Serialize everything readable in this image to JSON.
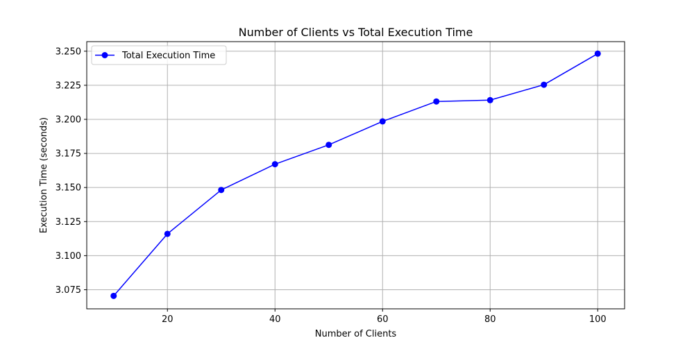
{
  "chart_data": {
    "type": "line",
    "title": "Number of Clients vs Total Execution Time",
    "xlabel": "Number of Clients",
    "ylabel": "Execution Time (seconds)",
    "xlim": [
      5,
      105
    ],
    "ylim": [
      3.061,
      3.257
    ],
    "x": [
      10,
      20,
      30,
      40,
      50,
      60,
      70,
      80,
      90,
      100
    ],
    "xticks": [
      20,
      40,
      60,
      80,
      100
    ],
    "xtick_labels": [
      "20",
      "40",
      "60",
      "80",
      "100"
    ],
    "yticks": [
      3.075,
      3.1,
      3.125,
      3.15,
      3.175,
      3.2,
      3.225,
      3.25
    ],
    "ytick_labels": [
      "3.075",
      "3.100",
      "3.125",
      "3.150",
      "3.175",
      "3.200",
      "3.225",
      "3.250"
    ],
    "grid": true,
    "legend_position": "upper-left",
    "series": [
      {
        "name": "Total Execution Time",
        "color": "#0000ff",
        "marker": "circle",
        "values": [
          3.0705,
          3.116,
          3.1482,
          3.1671,
          3.1813,
          3.1985,
          3.2131,
          3.2141,
          3.2254,
          3.2482
        ]
      }
    ]
  }
}
